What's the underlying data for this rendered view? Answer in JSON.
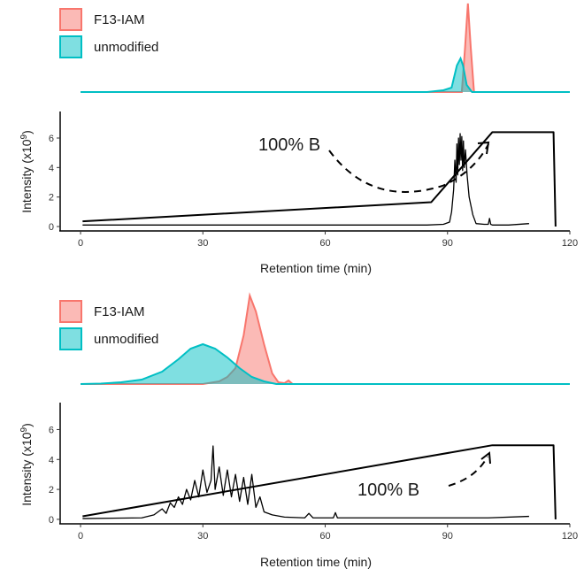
{
  "chart_data": [
    {
      "type": "area",
      "legend": {
        "placement": "top-left",
        "entries": [
          {
            "label": "F13-IAM",
            "fill": "#F8766D",
            "line": "#F8766D"
          },
          {
            "label": "unmodified",
            "fill": "#00BFC4",
            "line": "#00BFC4"
          }
        ]
      },
      "xlim": [
        -5,
        120
      ],
      "series": [
        {
          "name": "F13-IAM",
          "color": "#F8766D",
          "x": [
            0,
            90,
            93.5,
            94.3,
            95,
            95.7,
            96.5,
            100,
            120
          ],
          "y": [
            0,
            0,
            0,
            0.5,
            1.0,
            0.5,
            0,
            0,
            0
          ]
        },
        {
          "name": "unmodified",
          "color": "#00BFC4",
          "x": [
            0,
            85,
            89,
            91,
            92.3,
            93.2,
            93.8,
            94.7,
            96,
            120
          ],
          "y": [
            0,
            0,
            0.02,
            0.05,
            0.3,
            0.38,
            0.3,
            0.08,
            0,
            0
          ]
        }
      ]
    },
    {
      "type": "line",
      "xlabel": "Retention time (min)",
      "ylabel": "Intensity (x10⁹)",
      "xlim": [
        -5,
        120
      ],
      "ylim": [
        -0.3,
        7.8
      ],
      "xticks": [
        0,
        30,
        60,
        90,
        120
      ],
      "yticks": [
        0,
        2,
        4,
        6
      ],
      "series": [
        {
          "name": "gradient",
          "x": [
            0.5,
            86,
            101,
            116,
            116.5
          ],
          "y": [
            0.35,
            1.65,
            6.4,
            6.4,
            0
          ]
        },
        {
          "name": "signal",
          "x": [
            0.5,
            60,
            85,
            89,
            90.5,
            91,
            91.5,
            91.8,
            92.1,
            92.3,
            92.5,
            92.7,
            92.9,
            93.1,
            93.3,
            93.5,
            93.7,
            93.9,
            94.1,
            94.4,
            94.8,
            95.3,
            96.2,
            97,
            99,
            100,
            100.3,
            100.6,
            101,
            105,
            110
          ],
          "y": [
            0.1,
            0.1,
            0.1,
            0.15,
            0.3,
            1.0,
            2.5,
            4.5,
            3.0,
            5.6,
            3.5,
            6.0,
            4.2,
            6.3,
            4.5,
            6.1,
            3.8,
            5.8,
            4.0,
            5.2,
            3.5,
            2.0,
            0.8,
            0.2,
            0.15,
            0.15,
            0.55,
            0.15,
            0.1,
            0.1,
            0.2
          ]
        }
      ],
      "annotation": {
        "text": "100% B",
        "x": 32,
        "y": 5.6
      }
    },
    {
      "type": "area",
      "legend": {
        "placement": "top-left",
        "entries": [
          {
            "label": "F13-IAM",
            "fill": "#F8766D",
            "line": "#F8766D"
          },
          {
            "label": "unmodified",
            "fill": "#00BFC4",
            "line": "#00BFC4"
          }
        ]
      },
      "xlim": [
        -5,
        120
      ],
      "series": [
        {
          "name": "F13-IAM",
          "color": "#F8766D",
          "x": [
            0,
            30,
            34,
            36,
            38,
            40,
            41.5,
            43,
            45,
            47,
            48.5,
            50,
            51,
            52,
            120
          ],
          "y": [
            0,
            0,
            0.03,
            0.08,
            0.18,
            0.55,
            1.0,
            0.82,
            0.45,
            0.12,
            0.02,
            0.01,
            0.04,
            0,
            0
          ]
        },
        {
          "name": "unmodified",
          "color": "#00BFC4",
          "x": [
            0,
            5,
            10,
            15,
            20,
            24,
            27,
            30,
            33,
            36,
            39,
            42,
            45,
            48,
            120
          ],
          "y": [
            0,
            0.005,
            0.02,
            0.05,
            0.14,
            0.28,
            0.4,
            0.45,
            0.4,
            0.3,
            0.18,
            0.08,
            0.03,
            0,
            0
          ]
        }
      ]
    },
    {
      "type": "line",
      "xlabel": "Retention time (min)",
      "ylabel": "Intensity (x10⁹)",
      "xlim": [
        -5,
        120
      ],
      "ylim": [
        -0.3,
        7.8
      ],
      "xticks": [
        0,
        30,
        60,
        90,
        120
      ],
      "yticks": [
        0,
        2,
        4,
        6
      ],
      "series": [
        {
          "name": "gradient",
          "x": [
            0.5,
            101,
            116,
            116.5
          ],
          "y": [
            0.2,
            4.95,
            4.95,
            0
          ]
        },
        {
          "name": "signal",
          "x": [
            0.5,
            15,
            18,
            20,
            21,
            22,
            23,
            24,
            25,
            26,
            27,
            28,
            29,
            30,
            31,
            32,
            32.5,
            33,
            34,
            35,
            36,
            37,
            38,
            39,
            40,
            41,
            42,
            43,
            44,
            45,
            47,
            50,
            55,
            56,
            57,
            62,
            62.5,
            63,
            70,
            80,
            90,
            100,
            110
          ],
          "y": [
            0.05,
            0.1,
            0.3,
            0.7,
            0.4,
            1.1,
            0.8,
            1.5,
            1.0,
            2.0,
            1.3,
            2.6,
            1.5,
            3.3,
            1.8,
            2.6,
            4.9,
            2.0,
            3.5,
            1.6,
            3.3,
            1.5,
            3.0,
            1.2,
            2.8,
            1.0,
            3.0,
            0.8,
            1.5,
            0.5,
            0.3,
            0.15,
            0.1,
            0.4,
            0.1,
            0.1,
            0.45,
            0.1,
            0.1,
            0.1,
            0.1,
            0.1,
            0.2
          ]
        }
      ],
      "annotation": {
        "text": "100% B",
        "x": 74,
        "y": 1.95
      }
    }
  ]
}
